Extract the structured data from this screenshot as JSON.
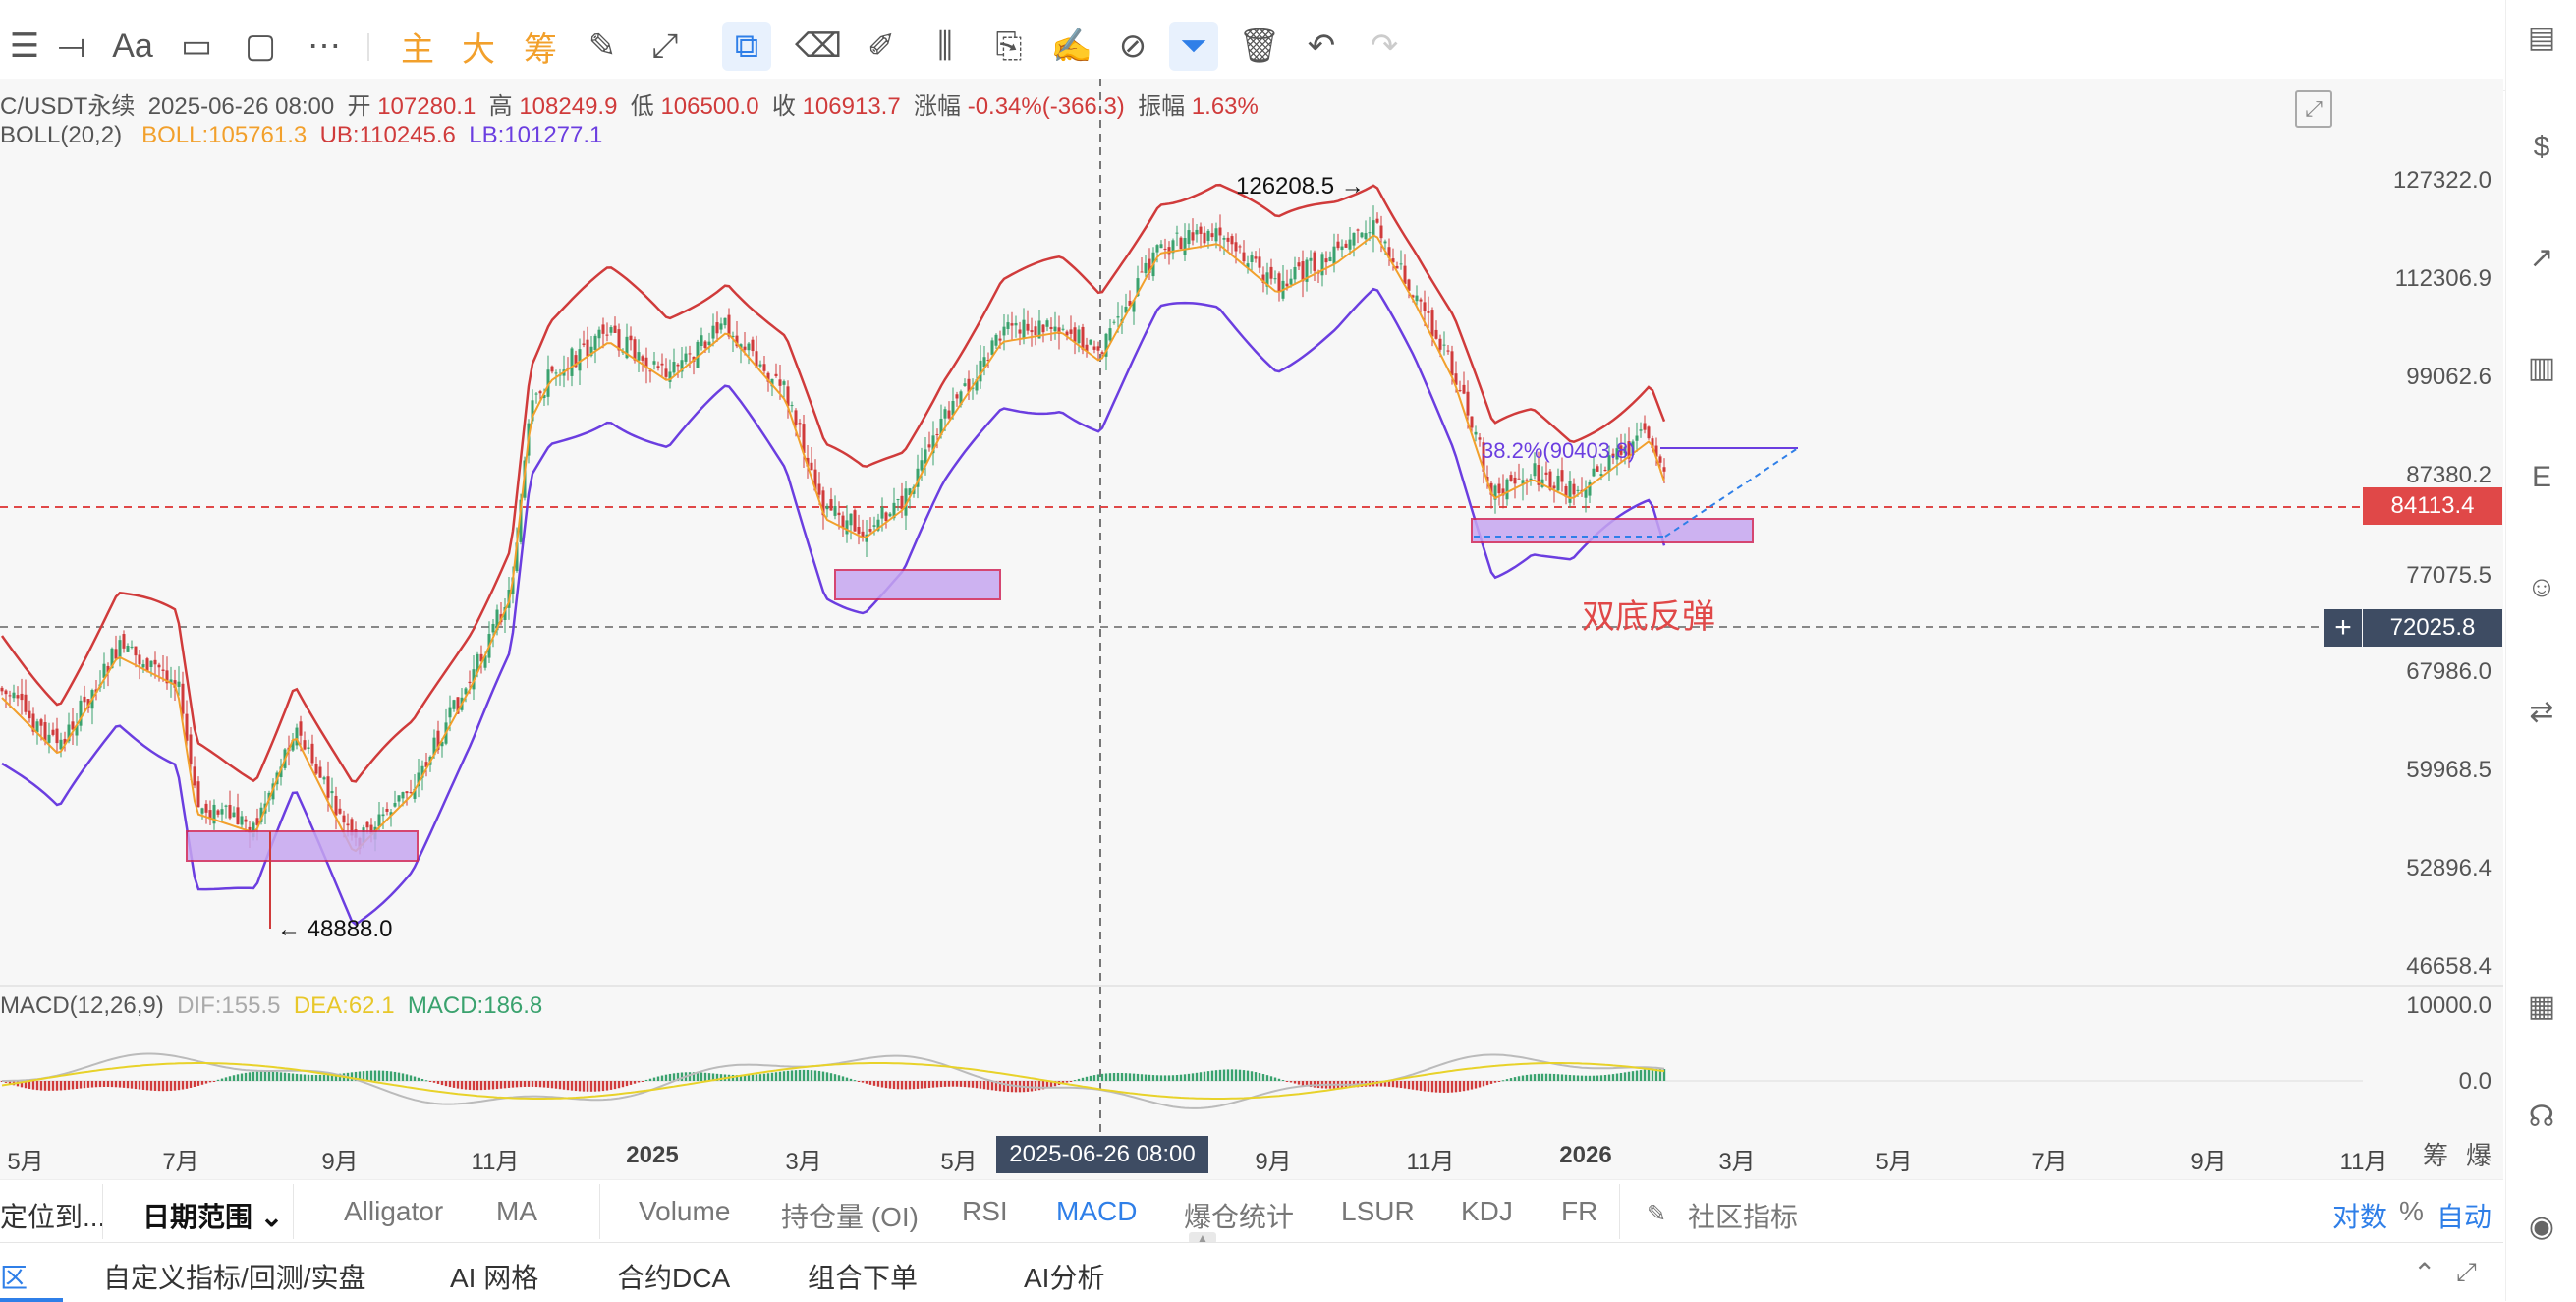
{
  "toolbar": {
    "chinese_buttons": [
      "主",
      "大",
      "筹"
    ],
    "font_label": "Aa"
  },
  "header": {
    "symbol": "C/USDT永续",
    "datetime": "2025-06-26 08:00",
    "open_label": "开",
    "open": "107280.1",
    "high_label": "高",
    "high": "108249.9",
    "low_label": "低",
    "low": "106500.0",
    "close_label": "收",
    "close": "106913.7",
    "change_label": "涨幅",
    "change": "-0.34%(-366.3)",
    "amplitude_label": "振幅",
    "amplitude": "1.63%"
  },
  "boll": {
    "name": "BOLL(20,2)",
    "mid": "BOLL:105761.3",
    "ub": "UB:110245.6",
    "lb": "LB:101277.1"
  },
  "price_axis": [
    "127322.0",
    "112306.9",
    "99062.6",
    "87380.2",
    "77075.5",
    "67986.0",
    "59968.5",
    "52896.4",
    "46658.4"
  ],
  "current_price_tag": "84113.4",
  "crosshair_price_tag": "72025.8",
  "crosshair_plus": "+",
  "annotations": {
    "high": "126208.5 →",
    "low": "← 48888.0",
    "fib": "38.2%(90403.8)",
    "note": "双底反弹"
  },
  "macd": {
    "name": "MACD(12,26,9)",
    "dif": "DIF:155.5",
    "dea": "DEA:62.1",
    "macd": "MACD:186.8",
    "axis": [
      "10000.0",
      "0.0"
    ]
  },
  "time_axis": [
    "5月",
    "7月",
    "9月",
    "11月",
    "2025",
    "3月",
    "5月",
    "9月",
    "11月",
    "2026",
    "3月",
    "5月",
    "7月",
    "9月",
    "11月"
  ],
  "crosshair_time": "2025-06-26 08:00",
  "axis_corner": [
    "筹",
    "爆"
  ],
  "indicator_tabs": {
    "locate": "定位到...",
    "date_range": "日期范围",
    "date_range_arrow": "⌄",
    "items": [
      "Alligator",
      "MA",
      "Volume",
      "持仓量 (OI)",
      "RSI",
      "MACD",
      "爆仓统计",
      "LSUR",
      "KDJ",
      "FR"
    ],
    "community": "社区指标",
    "log": "对数",
    "percent": "%",
    "auto": "自动"
  },
  "bottom_tabs": [
    "区",
    "自定义指标/回测/实盘",
    "AI 网格",
    "合约DCA",
    "组合下单",
    "AI分析"
  ],
  "colors": {
    "candle_up": "#3aa26e",
    "candle_down": "#d03b3b",
    "boll_upper": "#d03b3b",
    "boll_mid": "#f2a02c",
    "boll_lower": "#6b3ee0",
    "price_tag": "#e04848",
    "crosshair_tag": "#3e4c63",
    "accent": "#2f7fe8"
  }
}
